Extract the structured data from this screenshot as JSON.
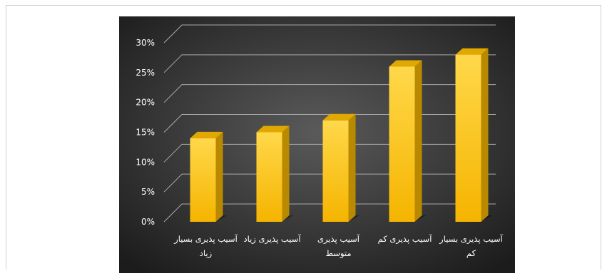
{
  "chart_data": {
    "type": "bar",
    "title": "",
    "xlabel": "",
    "ylabel": "",
    "categories": [
      [
        "آسیب پذیری بسیار",
        "زیاد"
      ],
      [
        "آسیب پذیری زیاد"
      ],
      [
        "آسیب پذیری",
        "متوسط"
      ],
      [
        "آسیب پذیری کم"
      ],
      [
        "آسیب پذیری بسیار",
        "کم"
      ]
    ],
    "values": [
      14,
      15,
      17,
      26,
      28
    ],
    "unit": "%",
    "ylim": [
      0,
      30
    ],
    "ytick_step": 5,
    "ytick_labels": [
      "0%",
      "5%",
      "10%",
      "15%",
      "20%",
      "25%",
      "30%"
    ],
    "grid": true,
    "legend": "none",
    "colors": {
      "bar_front_top": "#ffd84a",
      "bar_front_bottom": "#f5b400",
      "bar_side": "#b98a00",
      "bar_top": "#e0a800",
      "grid": "#a8a8a8",
      "text": "#ffffff",
      "bg_center": "#5a5a5a",
      "bg_edge": "#1c1c1c"
    }
  }
}
